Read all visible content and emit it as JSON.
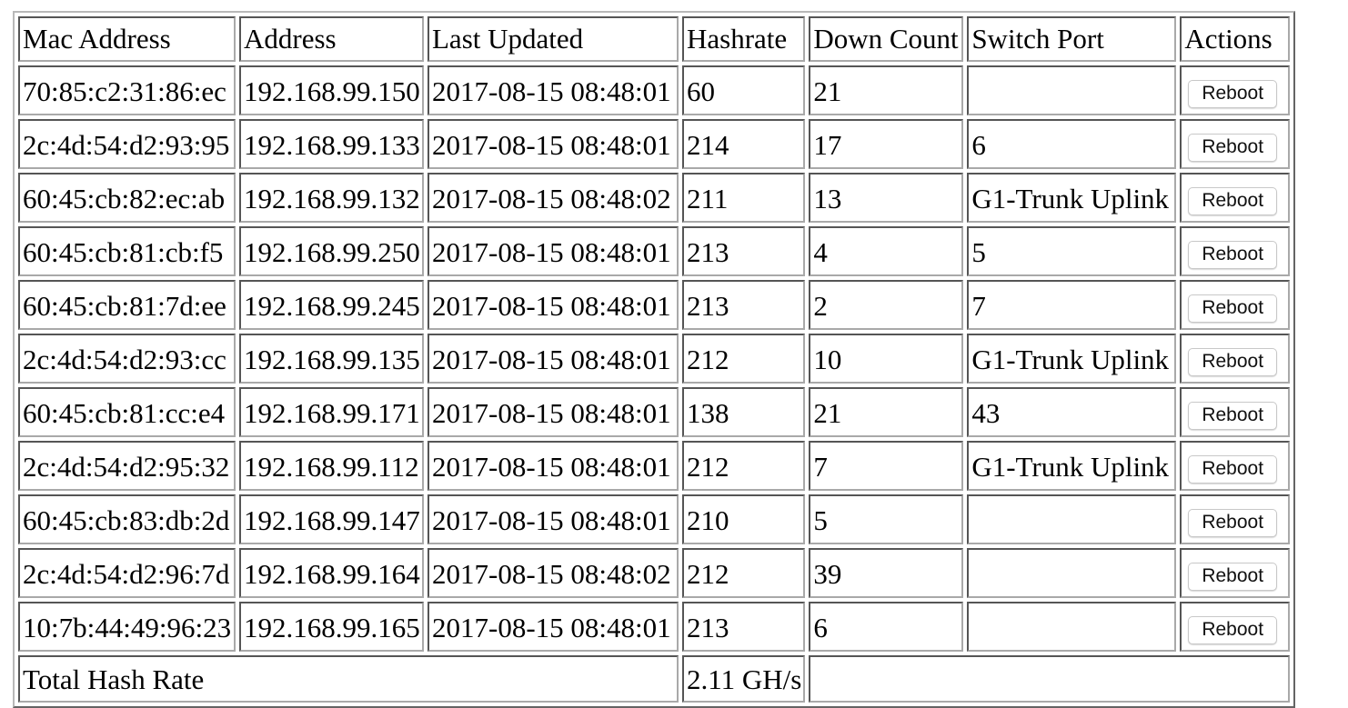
{
  "table": {
    "headers": [
      "Mac Address",
      "Address",
      "Last Updated",
      "Hashrate",
      "Down Count",
      "Switch Port",
      "Actions"
    ],
    "rows": [
      {
        "mac": "70:85:c2:31:86:ec",
        "address": "192.168.99.150",
        "last_updated": "2017-08-15 08:48:01",
        "hashrate": "60",
        "down_count": "21",
        "switch_port": "",
        "action_label": "Reboot"
      },
      {
        "mac": "2c:4d:54:d2:93:95",
        "address": "192.168.99.133",
        "last_updated": "2017-08-15 08:48:01",
        "hashrate": "214",
        "down_count": "17",
        "switch_port": "6",
        "action_label": "Reboot"
      },
      {
        "mac": "60:45:cb:82:ec:ab",
        "address": "192.168.99.132",
        "last_updated": "2017-08-15 08:48:02",
        "hashrate": "211",
        "down_count": "13",
        "switch_port": "G1-Trunk Uplink",
        "action_label": "Reboot"
      },
      {
        "mac": "60:45:cb:81:cb:f5",
        "address": "192.168.99.250",
        "last_updated": "2017-08-15 08:48:01",
        "hashrate": "213",
        "down_count": "4",
        "switch_port": "5",
        "action_label": "Reboot"
      },
      {
        "mac": "60:45:cb:81:7d:ee",
        "address": "192.168.99.245",
        "last_updated": "2017-08-15 08:48:01",
        "hashrate": "213",
        "down_count": "2",
        "switch_port": "7",
        "action_label": "Reboot"
      },
      {
        "mac": "2c:4d:54:d2:93:cc",
        "address": "192.168.99.135",
        "last_updated": "2017-08-15 08:48:01",
        "hashrate": "212",
        "down_count": "10",
        "switch_port": "G1-Trunk Uplink",
        "action_label": "Reboot"
      },
      {
        "mac": "60:45:cb:81:cc:e4",
        "address": "192.168.99.171",
        "last_updated": "2017-08-15 08:48:01",
        "hashrate": "138",
        "down_count": "21",
        "switch_port": "43",
        "action_label": "Reboot"
      },
      {
        "mac": "2c:4d:54:d2:95:32",
        "address": "192.168.99.112",
        "last_updated": "2017-08-15 08:48:01",
        "hashrate": "212",
        "down_count": "7",
        "switch_port": "G1-Trunk Uplink",
        "action_label": "Reboot"
      },
      {
        "mac": "60:45:cb:83:db:2d",
        "address": "192.168.99.147",
        "last_updated": "2017-08-15 08:48:01",
        "hashrate": "210",
        "down_count": "5",
        "switch_port": "",
        "action_label": "Reboot"
      },
      {
        "mac": "2c:4d:54:d2:96:7d",
        "address": "192.168.99.164",
        "last_updated": "2017-08-15 08:48:02",
        "hashrate": "212",
        "down_count": "39",
        "switch_port": "",
        "action_label": "Reboot"
      },
      {
        "mac": "10:7b:44:49:96:23",
        "address": "192.168.99.165",
        "last_updated": "2017-08-15 08:48:01",
        "hashrate": "213",
        "down_count": "6",
        "switch_port": "",
        "action_label": "Reboot"
      }
    ],
    "footer": {
      "label": "Total Hash Rate",
      "value": "2.11 GH/s",
      "rest": ""
    }
  }
}
